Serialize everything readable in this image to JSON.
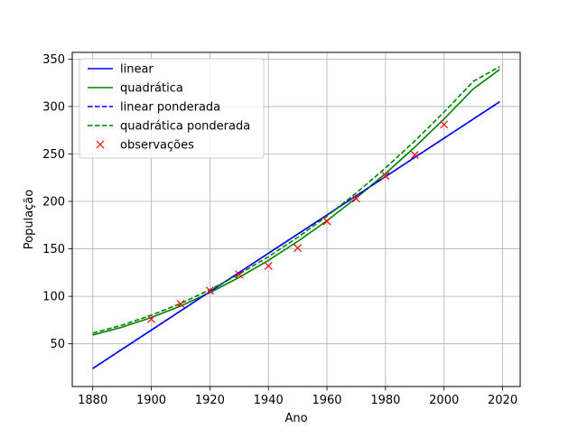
{
  "chart_data": {
    "type": "line",
    "title": "",
    "xlabel": "Ano",
    "ylabel": "População",
    "xlim": [
      1873,
      2026
    ],
    "ylim": [
      5,
      357
    ],
    "xticks": [
      1880,
      1900,
      1920,
      1940,
      1960,
      1980,
      2000,
      2020
    ],
    "yticks": [
      50,
      100,
      150,
      200,
      250,
      300,
      350
    ],
    "grid": true,
    "legend_position": "upper left",
    "series": [
      {
        "name": "linear",
        "kind": "line",
        "style": "solid",
        "color": "#0000ff",
        "x": [
          1880,
          2019
        ],
        "y": [
          24,
          305
        ]
      },
      {
        "name": "quadrática",
        "kind": "line",
        "style": "solid",
        "color": "#008000",
        "x": [
          1880,
          1890,
          1900,
          1910,
          1920,
          1930,
          1940,
          1950,
          1960,
          1970,
          1980,
          1990,
          2000,
          2010,
          2019
        ],
        "y": [
          59.3,
          67.5,
          77.7,
          89.8,
          103.9,
          119.9,
          137.9,
          157.8,
          179.7,
          203.6,
          229.4,
          257.2,
          286.9,
          318.6,
          339
        ]
      },
      {
        "name": "linear ponderada",
        "kind": "line",
        "style": "dashed",
        "color": "#0000ff",
        "x": [
          1880,
          2019
        ],
        "y": [
          24,
          305
        ]
      },
      {
        "name": "quadrática ponderada",
        "kind": "line",
        "style": "dashed",
        "color": "#008000",
        "x": [
          1880,
          1890,
          1900,
          1910,
          1920,
          1930,
          1940,
          1950,
          1960,
          1970,
          1980,
          1990,
          2000,
          2010,
          2019
        ],
        "y": [
          61.3,
          69.7,
          80.1,
          92.5,
          106.9,
          123.3,
          141.7,
          162.1,
          184.5,
          208.9,
          235.3,
          263.7,
          294.1,
          326.5,
          342
        ]
      },
      {
        "name": "observações",
        "kind": "scatter",
        "marker": "x",
        "color": "#ff0000",
        "x": [
          1900,
          1910,
          1920,
          1930,
          1940,
          1950,
          1960,
          1970,
          1980,
          1990,
          2000
        ],
        "y": [
          76,
          92,
          106,
          123,
          132,
          151,
          179,
          203,
          227,
          249,
          281
        ]
      }
    ]
  }
}
